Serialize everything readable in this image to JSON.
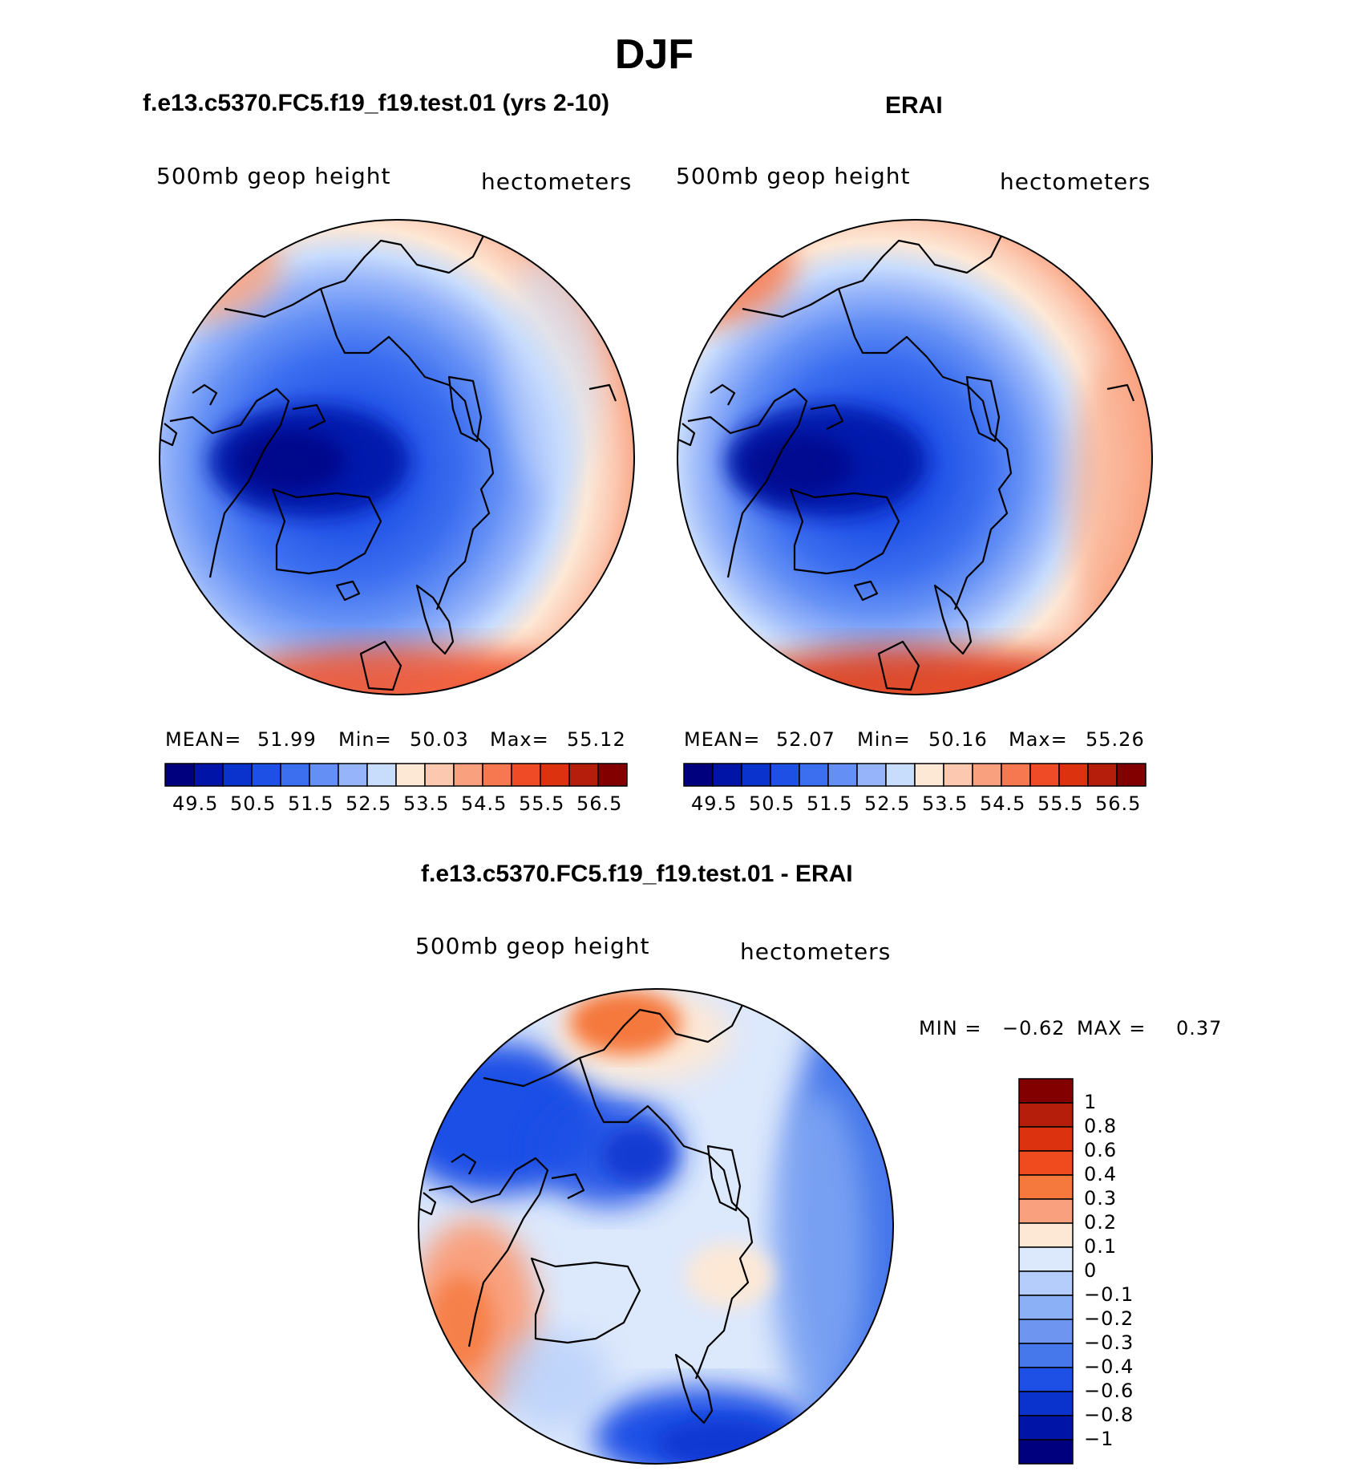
{
  "title": "DJF",
  "panels": [
    {
      "title": "f.e13.c5370.FC5.f19_f19.test.01 (yrs 2-10)",
      "left_label": "500mb geop height",
      "right_label": "hectometers",
      "stats": {
        "mean_label": "MEAN=",
        "mean": "51.99",
        "min_label": "Min=",
        "min": "50.03",
        "max_label": "Max=",
        "max": "55.12"
      }
    },
    {
      "title": "ERAI",
      "left_label": "500mb geop height",
      "right_label": "hectometers",
      "stats": {
        "mean_label": "MEAN=",
        "mean": "52.07",
        "min_label": "Min=",
        "min": "50.16",
        "max_label": "Max=",
        "max": "55.26"
      }
    }
  ],
  "abs_colorbar": {
    "colors": [
      "#00007f",
      "#0014a8",
      "#0a32cc",
      "#1e50e6",
      "#3c6ef0",
      "#6490f5",
      "#96b4fa",
      "#c8dcfc",
      "#fde8d6",
      "#fcc8b0",
      "#f9a07e",
      "#f57850",
      "#ee4b26",
      "#dc3210",
      "#b41e0a",
      "#820000"
    ],
    "labels": [
      "49.5",
      "50.5",
      "51.5",
      "52.5",
      "53.5",
      "54.5",
      "55.5",
      "56.5"
    ]
  },
  "difference": {
    "title": "f.e13.c5370.FC5.f19_f19.test.01 - ERAI",
    "left_label": "500mb geop height",
    "right_label": "hectometers",
    "stats": {
      "min_label": "MIN =",
      "min": "−0.62",
      "max_label": "MAX =",
      "max": "0.37"
    },
    "colorbar": {
      "colors": [
        "#820000",
        "#b41e0a",
        "#dc3210",
        "#f04b1e",
        "#f5783c",
        "#f9a07e",
        "#fde8d6",
        "#dce8fc",
        "#b4cdfa",
        "#8cb0f5",
        "#6e96f0",
        "#4678eb",
        "#1e50e6",
        "#0a32cc",
        "#0014a8",
        "#00007f"
      ],
      "labels": [
        "1",
        "0.8",
        "0.6",
        "0.4",
        "0.3",
        "0.2",
        "0.1",
        "0",
        "−0.1",
        "−0.2",
        "−0.3",
        "−0.4",
        "−0.6",
        "−0.8",
        "−1"
      ]
    }
  }
}
